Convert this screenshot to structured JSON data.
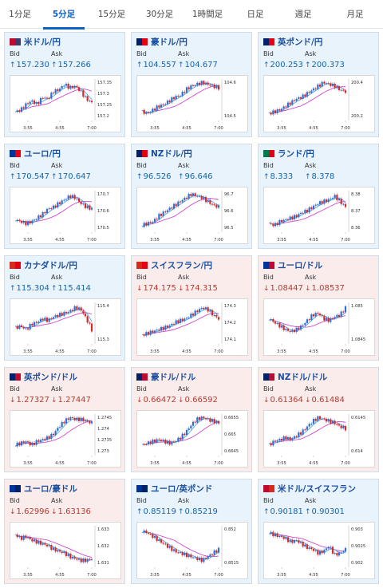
{
  "tabs": [
    {
      "label": "1分足",
      "active": false
    },
    {
      "label": "5分足",
      "active": true
    },
    {
      "label": "15分足",
      "active": false
    },
    {
      "label": "30分足",
      "active": false
    },
    {
      "label": "1時間足",
      "active": false
    },
    {
      "label": "日足",
      "active": false
    },
    {
      "label": "週足",
      "active": false
    },
    {
      "label": "月足",
      "active": false
    }
  ],
  "labels": {
    "bid": "Bid",
    "ask": "Ask"
  },
  "x_ticks": [
    "3:55",
    "4:55",
    "7:00"
  ],
  "colors": {
    "up": "#e8f3fb",
    "down": "#fbecec",
    "bull": "#2f6fd2",
    "bear": "#d42a2a",
    "ma_short": "#4aa0d8",
    "ma_long": "#cc33cc"
  },
  "cards": [
    {
      "name": "usd-jpy",
      "pair": "米ドル/円",
      "trend": "up",
      "bid": "157.230",
      "ask": "157.266",
      "flags": [
        "#bf0a30",
        "#3c3b6e"
      ],
      "y_ticks": [
        "157.35",
        "157.3",
        "157.25",
        "157.2"
      ],
      "shape": [
        0.15,
        0.2,
        0.35,
        0.45,
        0.35,
        0.55,
        0.5,
        0.7,
        0.75,
        0.9,
        0.8,
        0.85,
        0.7,
        0.5,
        0.4
      ]
    },
    {
      "name": "aud-jpy",
      "pair": "豪ドル/円",
      "trend": "up",
      "bid": "104.557",
      "ask": "104.677",
      "flags": [
        "#012169",
        "#e60012"
      ],
      "y_ticks": [
        "104.6",
        "104.5"
      ],
      "shape": [
        0.15,
        0.1,
        0.2,
        0.3,
        0.35,
        0.45,
        0.55,
        0.6,
        0.75,
        0.85,
        0.9,
        0.95,
        0.9,
        0.85,
        0.8
      ]
    },
    {
      "name": "gbp-jpy",
      "pair": "英ポンド/円",
      "trend": "up",
      "bid": "200.253",
      "ask": "200.373",
      "flags": [
        "#012169",
        "#e60012"
      ],
      "y_ticks": [
        "200.4",
        "200.2"
      ],
      "shape": [
        0.1,
        0.15,
        0.2,
        0.3,
        0.4,
        0.5,
        0.55,
        0.65,
        0.75,
        0.85,
        0.95,
        0.9,
        0.85,
        0.75,
        0.7
      ]
    },
    {
      "name": "eur-jpy",
      "pair": "ユーロ/円",
      "trend": "up",
      "bid": "170.547",
      "ask": "170.647",
      "flags": [
        "#003399",
        "#e60012"
      ],
      "y_ticks": [
        "170.7",
        "170.6",
        "170.5"
      ],
      "shape": [
        0.25,
        0.2,
        0.15,
        0.2,
        0.3,
        0.4,
        0.55,
        0.6,
        0.7,
        0.8,
        0.9,
        0.85,
        0.7,
        0.6,
        0.55
      ]
    },
    {
      "name": "nzd-jpy",
      "pair": "NZドル/円",
      "trend": "up",
      "bid": "96.526",
      "ask": "96.646",
      "flags": [
        "#012169",
        "#e60012"
      ],
      "y_ticks": [
        "96.7",
        "96.6",
        "96.5"
      ],
      "shape": [
        0.1,
        0.15,
        0.2,
        0.35,
        0.45,
        0.55,
        0.65,
        0.75,
        0.85,
        0.95,
        0.9,
        0.85,
        0.75,
        0.65,
        0.6
      ]
    },
    {
      "name": "zar-jpy",
      "pair": "ランド/円",
      "trend": "up",
      "bid": "8.333",
      "ask": "8.378",
      "flags": [
        "#007a4d",
        "#e60012"
      ],
      "y_ticks": [
        "8.38",
        "8.37",
        "8.36"
      ],
      "shape": [
        0.15,
        0.1,
        0.2,
        0.25,
        0.3,
        0.35,
        0.45,
        0.5,
        0.6,
        0.7,
        0.75,
        0.8,
        0.9,
        0.75,
        0.6
      ]
    },
    {
      "name": "cad-jpy",
      "pair": "カナダドル/円",
      "trend": "up",
      "bid": "115.304",
      "ask": "115.414",
      "flags": [
        "#d52b1e",
        "#e60012"
      ],
      "y_ticks": [
        "115.4",
        "115.3"
      ],
      "shape": [
        0.35,
        0.4,
        0.3,
        0.45,
        0.5,
        0.6,
        0.55,
        0.65,
        0.7,
        0.75,
        0.8,
        0.9,
        0.85,
        0.6,
        0.3
      ]
    },
    {
      "name": "chf-jpy",
      "pair": "スイスフラン/円",
      "trend": "down",
      "bid": "174.175",
      "ask": "174.315",
      "flags": [
        "#d52b1e",
        "#e60012"
      ],
      "y_ticks": [
        "174.3",
        "174.2",
        "174.1"
      ],
      "shape": [
        0.15,
        0.2,
        0.25,
        0.3,
        0.35,
        0.4,
        0.5,
        0.55,
        0.6,
        0.7,
        0.8,
        0.9,
        0.85,
        0.7,
        0.6
      ]
    },
    {
      "name": "eur-usd",
      "pair": "ユーロ/ドル",
      "trend": "down",
      "bid": "1.08447",
      "ask": "1.08537",
      "flags": [
        "#003399",
        "#bf0a30"
      ],
      "y_ticks": [
        "1.085",
        "1.0845"
      ],
      "shape": [
        0.6,
        0.5,
        0.4,
        0.3,
        0.25,
        0.3,
        0.4,
        0.55,
        0.7,
        0.75,
        0.6,
        0.55,
        0.65,
        0.7,
        0.9
      ]
    },
    {
      "name": "gbp-usd",
      "pair": "英ポンド/ドル",
      "trend": "down",
      "bid": "1.27327",
      "ask": "1.27447",
      "flags": [
        "#012169",
        "#bf0a30"
      ],
      "y_ticks": [
        "1.2745",
        "1.274",
        "1.2735",
        "1.273"
      ],
      "shape": [
        0.2,
        0.25,
        0.3,
        0.2,
        0.3,
        0.35,
        0.4,
        0.5,
        0.7,
        0.85,
        0.95,
        0.9,
        0.9,
        0.85,
        0.8
      ]
    },
    {
      "name": "aud-usd",
      "pair": "豪ドル/ドル",
      "trend": "down",
      "bid": "0.66472",
      "ask": "0.66592",
      "flags": [
        "#012169",
        "#bf0a30"
      ],
      "y_ticks": [
        "0.6655",
        "0.665",
        "0.6645"
      ],
      "shape": [
        0.2,
        0.25,
        0.3,
        0.35,
        0.3,
        0.25,
        0.3,
        0.4,
        0.55,
        0.75,
        0.9,
        0.95,
        0.9,
        0.85,
        0.8
      ]
    },
    {
      "name": "nzd-usd",
      "pair": "NZドル/ドル",
      "trend": "down",
      "bid": "0.61364",
      "ask": "0.61484",
      "flags": [
        "#012169",
        "#bf0a30"
      ],
      "y_ticks": [
        "0.6145",
        "0.614"
      ],
      "shape": [
        0.2,
        0.3,
        0.35,
        0.4,
        0.35,
        0.45,
        0.55,
        0.7,
        0.85,
        0.95,
        0.9,
        0.85,
        0.8,
        0.7,
        0.65
      ]
    },
    {
      "name": "eur-aud",
      "pair": "ユーロ/豪ドル",
      "trend": "down",
      "bid": "1.62996",
      "ask": "1.63136",
      "flags": [
        "#003399",
        "#012169"
      ],
      "y_ticks": [
        "1.633",
        "1.632",
        "1.631"
      ],
      "shape": [
        0.8,
        0.7,
        0.75,
        0.65,
        0.6,
        0.55,
        0.5,
        0.4,
        0.35,
        0.3,
        0.2,
        0.15,
        0.1,
        0.1,
        0.15
      ]
    },
    {
      "name": "eur-gbp",
      "pair": "ユーロ/英ポンド",
      "trend": "up",
      "bid": "0.85119",
      "ask": "0.85219",
      "flags": [
        "#003399",
        "#012169"
      ],
      "y_ticks": [
        "0.852",
        "0.8515"
      ],
      "shape": [
        0.9,
        0.85,
        0.75,
        0.65,
        0.55,
        0.45,
        0.35,
        0.3,
        0.25,
        0.2,
        0.15,
        0.1,
        0.2,
        0.3,
        0.4
      ]
    },
    {
      "name": "usd-chf",
      "pair": "米ドル/スイスフラン",
      "trend": "up",
      "bid": "0.90181",
      "ask": "0.90301",
      "flags": [
        "#bf0a30",
        "#d52b1e"
      ],
      "y_ticks": [
        "0.903",
        "0.9025",
        "0.902"
      ],
      "shape": [
        0.85,
        0.8,
        0.75,
        0.7,
        0.6,
        0.65,
        0.55,
        0.45,
        0.4,
        0.3,
        0.35,
        0.5,
        0.25,
        0.3,
        0.4
      ]
    }
  ]
}
